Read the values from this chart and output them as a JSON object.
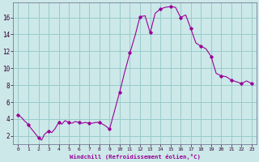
{
  "xlabel": "Windchill (Refroidissement éolien,°C)",
  "background_color": "#cce8e8",
  "line_color": "#990099",
  "marker_color": "#990099",
  "grid_color": "#99cccc",
  "xlim": [
    -0.5,
    23.5
  ],
  "ylim": [
    1.0,
    17.8
  ],
  "yticks": [
    2,
    4,
    6,
    8,
    10,
    12,
    14,
    16
  ],
  "xticks": [
    0,
    1,
    2,
    3,
    4,
    5,
    6,
    7,
    8,
    9,
    10,
    11,
    12,
    13,
    14,
    15,
    16,
    17,
    18,
    19,
    20,
    21,
    22,
    23
  ],
  "hours": [
    0,
    0.2,
    0.4,
    0.6,
    0.8,
    1.0,
    1.2,
    1.4,
    1.6,
    1.8,
    2.0,
    2.3,
    2.6,
    3.0,
    3.3,
    3.6,
    4.0,
    4.3,
    4.6,
    5.0,
    5.3,
    5.6,
    6.0,
    6.3,
    6.6,
    7.0,
    7.3,
    7.6,
    8.0,
    8.3,
    8.6,
    9.0,
    9.5,
    10.0,
    10.5,
    11.0,
    11.5,
    12.0,
    12.5,
    13.0,
    13.5,
    14.0,
    14.5,
    15.0,
    15.5,
    16.0,
    16.5,
    17.0,
    17.5,
    18.0,
    18.5,
    19.0,
    19.5,
    20.0,
    20.5,
    21.0,
    21.5,
    22.0,
    22.5,
    23.0
  ],
  "values": [
    4.5,
    4.3,
    4.1,
    3.8,
    3.6,
    3.3,
    3.0,
    2.7,
    2.4,
    2.1,
    1.8,
    1.5,
    2.2,
    2.6,
    2.4,
    2.8,
    3.6,
    3.4,
    3.8,
    3.6,
    3.5,
    3.7,
    3.6,
    3.5,
    3.6,
    3.5,
    3.5,
    3.6,
    3.6,
    3.4,
    3.2,
    2.8,
    5.0,
    7.2,
    9.6,
    11.8,
    13.8,
    16.1,
    16.2,
    14.2,
    16.5,
    17.0,
    17.2,
    17.3,
    17.2,
    16.0,
    16.3,
    14.7,
    13.0,
    12.6,
    12.3,
    11.4,
    9.4,
    9.1,
    9.0,
    8.6,
    8.4,
    8.2,
    8.5,
    8.2
  ],
  "marker_hours": [
    0,
    1,
    2,
    3,
    4,
    5,
    6,
    7,
    8,
    9,
    10,
    11,
    12,
    13,
    14,
    15,
    16,
    17,
    18,
    19,
    20,
    21,
    22,
    23
  ],
  "marker_values": [
    4.5,
    3.3,
    1.8,
    2.6,
    3.6,
    3.6,
    3.6,
    3.5,
    3.6,
    2.8,
    7.2,
    11.8,
    16.1,
    14.2,
    17.0,
    17.3,
    16.0,
    14.7,
    12.6,
    11.4,
    9.1,
    8.6,
    8.2,
    8.2
  ]
}
